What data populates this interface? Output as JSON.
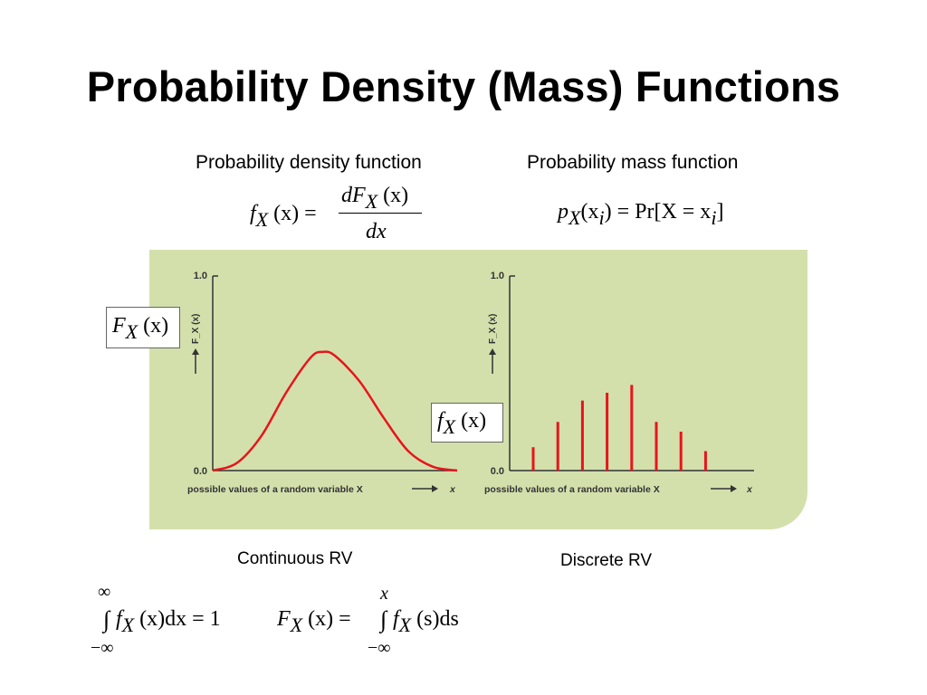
{
  "slide": {
    "title": "Probability Density (Mass) Functions"
  },
  "captions": {
    "pdf": "Probability density function",
    "pmf": "Probability mass function",
    "continuous": "Continuous RV",
    "discrete": "Discrete RV"
  },
  "formulas": {
    "pdf_def": {
      "lhs_f": "f",
      "lhs_sub": "X",
      "lhs_arg": "(x) =",
      "num_d": "dF",
      "num_sub": "X",
      "num_arg": "(x)",
      "den": "dx"
    },
    "pmf_def": {
      "p": "p",
      "sub": "X",
      "arg": "(x",
      "arg_sub": "i",
      "rhs": ") = Pr[X = x",
      "rhs_sub": "i",
      "close": "]"
    },
    "normalization": {
      "upper": "∞",
      "lower": "−∞",
      "integrand": "∫",
      "f": "f",
      "sub": "X",
      "rest": "(x)dx = 1"
    },
    "cdf_from_pdf": {
      "lhs_F": "F",
      "lhs_sub": "X",
      "lhs_arg": "(x) =",
      "upper": "x",
      "lower": "−∞",
      "integrand": "∫",
      "f": "f",
      "sub": "X",
      "rest": "(s)ds"
    },
    "annotation_F": {
      "F": "F",
      "sub": "X",
      "arg": "(x)"
    },
    "annotation_f": {
      "f": "f",
      "sub": "X",
      "arg": "(x)"
    }
  },
  "chart_data": [
    {
      "type": "line",
      "ylim": [
        0,
        1.0
      ],
      "ytick_labels": [
        "1.0",
        "0.0"
      ],
      "ylabel": "F_X (x)",
      "xlabel": "possible values of a random variable X",
      "xaxis_end_label": "x",
      "series": [
        {
          "color": "#e8141c",
          "x": [
            0,
            0.1,
            0.2,
            0.3,
            0.4,
            0.45,
            0.5,
            0.6,
            0.7,
            0.8,
            0.9,
            1.0
          ],
          "values": [
            0.0,
            0.04,
            0.18,
            0.4,
            0.58,
            0.61,
            0.59,
            0.46,
            0.27,
            0.1,
            0.02,
            0.0
          ]
        }
      ]
    },
    {
      "type": "bar",
      "ylim": [
        0,
        1.0
      ],
      "ytick_labels": [
        "1.0",
        "0.0"
      ],
      "ylabel": "F_X (x)",
      "xlabel": "possible values of a random variable X",
      "xaxis_end_label": "x",
      "series": [
        {
          "color": "#e8141c",
          "values": [
            0.12,
            0.25,
            0.36,
            0.4,
            0.44,
            0.25,
            0.2,
            0.1
          ]
        }
      ]
    }
  ]
}
